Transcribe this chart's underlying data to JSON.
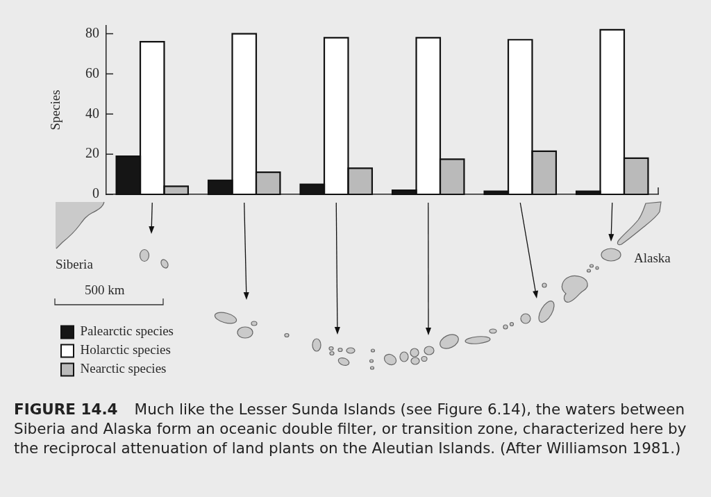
{
  "chart_data": {
    "type": "bar",
    "ylabel": "Species",
    "categories": [
      null,
      null,
      null,
      null,
      null,
      null
    ],
    "series": [
      {
        "name": "Palearctic species",
        "color": "#151515",
        "values": [
          19,
          7,
          5,
          2,
          1.5,
          1.5
        ]
      },
      {
        "name": "Holarctic species",
        "color": "#ffffff",
        "values": [
          76,
          80,
          78,
          78,
          77,
          82
        ]
      },
      {
        "name": "Nearctic species",
        "color": "#bababa",
        "values": [
          4,
          11,
          13,
          17.5,
          21.5,
          18
        ]
      }
    ],
    "ylim": [
      0,
      84
    ],
    "yticks": [
      0,
      20,
      40,
      60,
      80
    ],
    "grid": false,
    "legend": "bottom left",
    "tick_labels": "y",
    "annotations": [
      "Siberia",
      "Alaska",
      "500 km",
      "FIGURE 14.4",
      "Much like the Lesser Sunda Islands (see Figure 6.14), the waters between Siberia and Alaska form an oceanic double filter, or transition zone, characterized here by the reciprocal attenuation of land plants on the Aleutian Islands. (After Williamson 1981.)"
    ]
  }
}
